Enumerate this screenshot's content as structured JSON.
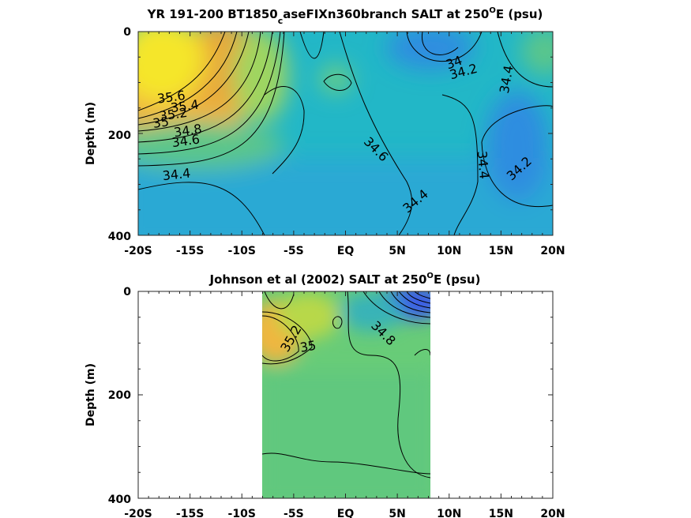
{
  "colors": {
    "yellow": "#f5e62a",
    "orange": "#f0a83a",
    "green": "#7fd17a",
    "cyan": "#1ab8c8",
    "teal": "#22b7c7",
    "blue": "#2f8de0",
    "deepblue": "#3a5ae8"
  },
  "chart_data": [
    {
      "type": "heatmap",
      "title_parts": [
        "YR 191-200 BT1850",
        "c",
        "aseFIXn360branch SALT at 250",
        "O",
        "E (psu)"
      ],
      "ylabel": "Depth (m)",
      "xticks": [
        "-20S",
        "-15S",
        "-10S",
        "-5S",
        "EQ",
        "5N",
        "10N",
        "15N",
        "20N"
      ],
      "yticks": [
        "0",
        "200",
        "400"
      ],
      "xlim": [
        -20,
        20
      ],
      "ylim": [
        0,
        400
      ],
      "y_reversed": true,
      "contour_labels": [
        {
          "text": "35.6",
          "lat": -16.8,
          "depth": 130,
          "angle": -8
        },
        {
          "text": "35.4",
          "lat": -15.5,
          "depth": 148,
          "angle": -8
        },
        {
          "text": "35.2",
          "lat": -16.6,
          "depth": 164,
          "angle": -8
        },
        {
          "text": "35",
          "lat": -17.8,
          "depth": 180,
          "angle": -8
        },
        {
          "text": "34.8",
          "lat": -15.2,
          "depth": 196,
          "angle": -8
        },
        {
          "text": "34.6",
          "lat": -15.4,
          "depth": 216,
          "angle": -8
        },
        {
          "text": "34.4",
          "lat": -16.3,
          "depth": 282,
          "angle": -6
        },
        {
          "text": "34.6",
          "lat": 2.9,
          "depth": 232,
          "angle": 45
        },
        {
          "text": "34.4",
          "lat": 6.8,
          "depth": 334,
          "angle": -40
        },
        {
          "text": "34",
          "lat": 10.5,
          "depth": 62,
          "angle": -20
        },
        {
          "text": "34.2",
          "lat": 11.4,
          "depth": 80,
          "angle": -15
        },
        {
          "text": "34.4",
          "lat": 15.6,
          "depth": 94,
          "angle": -80
        },
        {
          "text": "34.4",
          "lat": 13.2,
          "depth": 262,
          "angle": 85
        },
        {
          "text": "34.2",
          "lat": 16.8,
          "depth": 270,
          "angle": -42
        }
      ]
    },
    {
      "type": "heatmap",
      "title_parts": [
        "Johnson et al (2002) SALT at 250",
        "O",
        "E (psu)"
      ],
      "ylabel": "Depth (m)",
      "xticks": [
        "-20S",
        "-15S",
        "-10S",
        "-5S",
        "EQ",
        "5N",
        "10N",
        "15N",
        "20N"
      ],
      "yticks": [
        "0",
        "200",
        "400"
      ],
      "xlim": [
        -20,
        20
      ],
      "ylim": [
        0,
        400
      ],
      "y_reversed": true,
      "data_extent_lat": [
        -8,
        8
      ],
      "contour_labels": [
        {
          "text": "35.2",
          "lat": -5.2,
          "depth": 92,
          "angle": -60
        },
        {
          "text": "35",
          "lat": -3.6,
          "depth": 108,
          "angle": -10
        },
        {
          "text": "34.8",
          "lat": 3.6,
          "depth": 82,
          "angle": 45
        }
      ]
    }
  ]
}
